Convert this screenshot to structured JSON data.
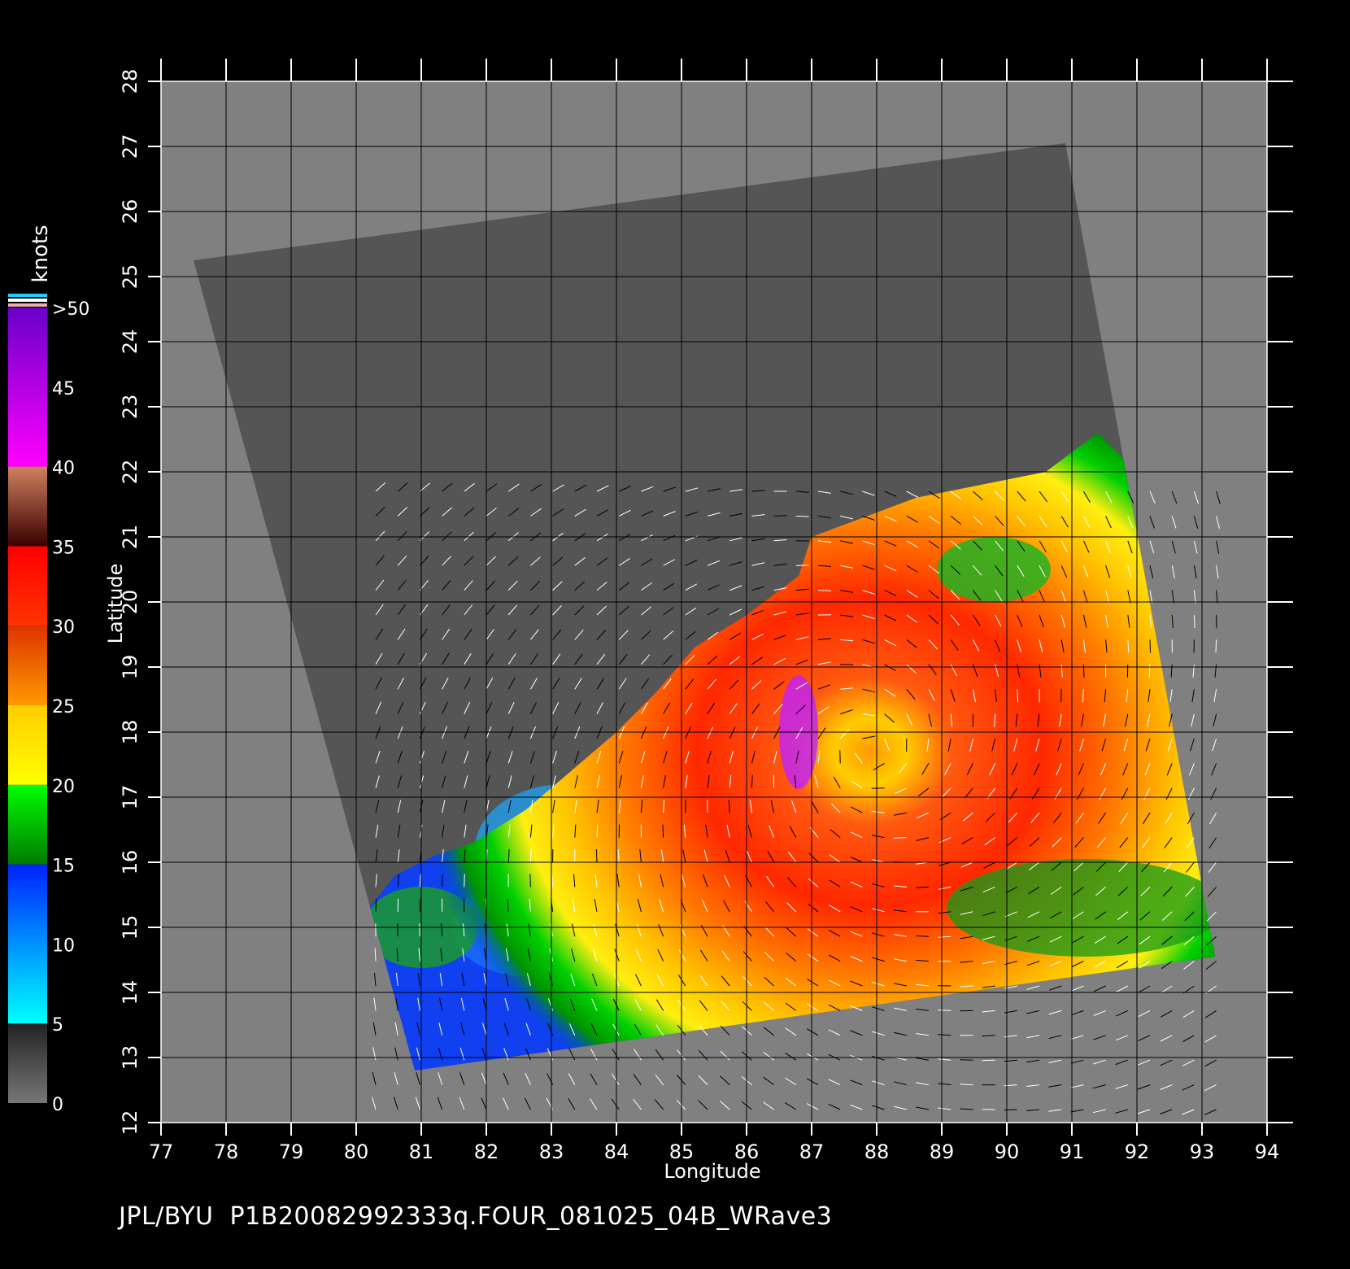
{
  "map": {
    "x_axis_title": "Longitude",
    "y_axis_title": "Latitude",
    "lon_ticks": [
      "77",
      "78",
      "79",
      "80",
      "81",
      "82",
      "83",
      "84",
      "85",
      "86",
      "87",
      "88",
      "89",
      "90",
      "91",
      "92",
      "93",
      "94"
    ],
    "lat_ticks": [
      "12",
      "13",
      "14",
      "15",
      "16",
      "17",
      "18",
      "19",
      "20",
      "21",
      "22",
      "23",
      "24",
      "25",
      "26",
      "27",
      "28"
    ],
    "lon_range": [
      77,
      94
    ],
    "lat_range": [
      12,
      28
    ],
    "grid": true,
    "swath_corners_lonlat": [
      [
        77.5,
        25.25
      ],
      [
        90.9,
        27.05
      ],
      [
        93.2,
        14.55
      ],
      [
        80.9,
        12.8
      ]
    ],
    "storm_center_lonlat": [
      87.9,
      17.7
    ],
    "colors": {
      "land": "#808080",
      "swath_no_data": "#555555",
      "gridline": "#000000"
    }
  },
  "colorbar": {
    "unit": "knots",
    "labels": [
      ">50",
      "45",
      "40",
      "35",
      "30",
      "25",
      "20",
      "15",
      "10",
      "5",
      "0"
    ],
    "segments": [
      {
        "range": "0-5",
        "from": "#777777",
        "to": "#222222"
      },
      {
        "range": "5-15",
        "from": "#00ffff",
        "to": "#0022ff"
      },
      {
        "range": "15-20",
        "from": "#007a00",
        "to": "#00ff00"
      },
      {
        "range": "20-25",
        "from": "#ffff00",
        "to": "#ffcc00"
      },
      {
        "range": "25-30",
        "from": "#ff9900",
        "to": "#dd3300"
      },
      {
        "range": "30-35",
        "from": "#ff3300",
        "to": "#ff0000"
      },
      {
        "range": "35-40",
        "from": "#3a0000",
        "to": "#d08060"
      },
      {
        "range": "40-50",
        "from": "#ff00ff",
        "to": "#6a00c8"
      }
    ]
  },
  "footer": {
    "text": "JPL/BYU  P1B20082992333q.FOUR_081025_04B_WRave3"
  }
}
